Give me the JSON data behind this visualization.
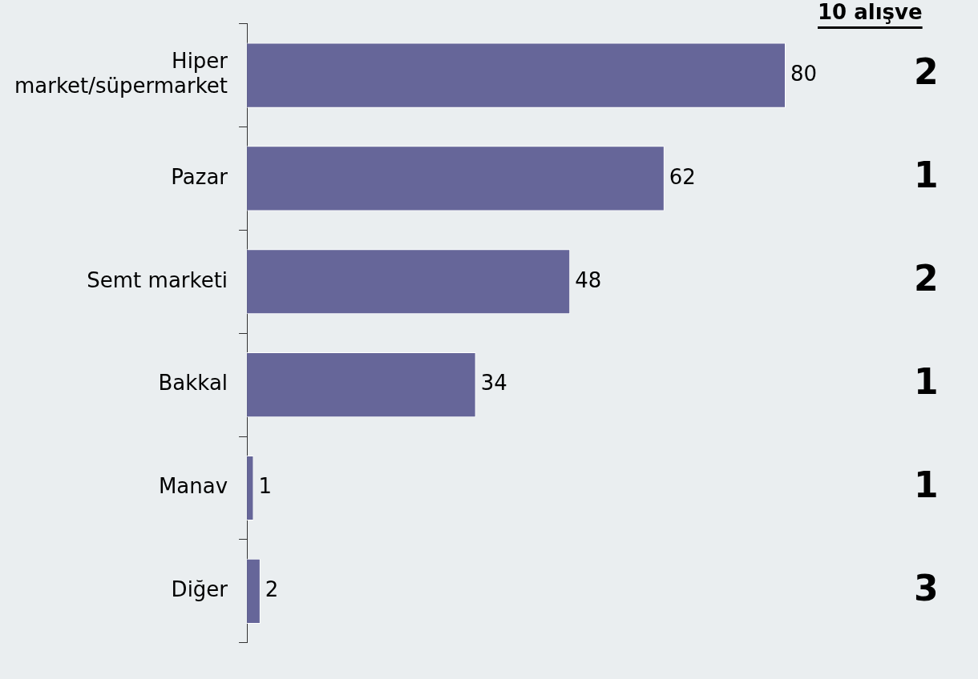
{
  "chart_data": {
    "type": "bar",
    "orientation": "horizontal",
    "categories": [
      "Hiper market/süpermarket",
      "Pazar",
      "Semt marketi",
      "Bakkal",
      "Manav",
      "Diğer"
    ],
    "values": [
      80,
      62,
      48,
      34,
      1,
      2
    ],
    "color": "#666699",
    "data_labels": true,
    "legend": false,
    "annotations": [
      "10 alışve",
      "2",
      "1",
      "2",
      "1",
      "1",
      "3"
    ]
  }
}
